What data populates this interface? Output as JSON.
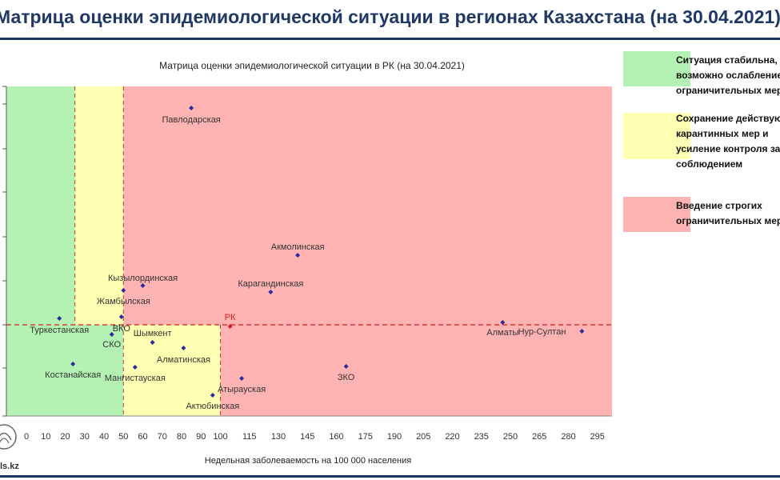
{
  "page_title": "Матрица оценки эпидемиологической ситуации в регионах Казахстана (на 30.04.2021)",
  "logo_text": "ls.kz",
  "colors": {
    "green": "#b3f2b3",
    "yellow": "#ffffb3",
    "red": "#ffb3b3",
    "point": "#2b2b9e",
    "rk_point": "#d42020",
    "title": "#1f3864"
  },
  "legend": [
    {
      "color": "#b3f2b3",
      "text": "Ситуация стабильна,\nвозможно ослабление\nограничительных мер"
    },
    {
      "color": "#ffffb3",
      "text": "Сохранение действующих\nкарантинных мер и\nусиление контроля за их\nсоблюдением"
    },
    {
      "color": "#ffb3b3",
      "text": "Введение строгих\nограничительных мер"
    }
  ],
  "chart_data": {
    "type": "scatter",
    "title": "Матрица оценки эпидемиологической ситуации в РК (на 30.04.2021)",
    "xlabel": "Недельная заболеваемость на 100 000 населения",
    "ylabel": "",
    "xlim": [
      -5,
      300
    ],
    "x_ticks": [
      0,
      10,
      20,
      30,
      40,
      50,
      60,
      70,
      80,
      90,
      100,
      115,
      130,
      145,
      160,
      175,
      190,
      205,
      220,
      235,
      250,
      265,
      280,
      295
    ],
    "x_axis_note": "шаг 10 до 100, затем шаг 15",
    "grid": false,
    "legend_position": "right",
    "zones": [
      {
        "name": "Ситуация стабильна",
        "color": "green",
        "x_max": 25,
        "lower_x_max": 50
      },
      {
        "name": "Сохранение действующих карантинных мер",
        "color": "yellow",
        "x_range": [
          25,
          50
        ],
        "lower_x_range": [
          50,
          100
        ]
      },
      {
        "name": "Введение строгих ограничительных мер",
        "color": "red",
        "x_min": 50,
        "lower_x_min": 100
      }
    ],
    "reference_lines": {
      "horizontal_level": "РК",
      "vertical": [
        25,
        50,
        100
      ]
    },
    "series": [
      {
        "points": [
          {
            "label": "Павлодарская",
            "x": 85
          },
          {
            "label": "Акмолинская",
            "x": 140
          },
          {
            "label": "Карагандинская",
            "x": 126
          },
          {
            "label": "Кызылординская",
            "x": 60
          },
          {
            "label": "Жамбылская",
            "x": 50
          },
          {
            "label": "Туркестанская",
            "x": 17
          },
          {
            "label": "ВКО",
            "x": 49
          },
          {
            "label": "СКО",
            "x": 44
          },
          {
            "label": "Шымкент",
            "x": 65
          },
          {
            "label": "Алматинская",
            "x": 81
          },
          {
            "label": "Костанайская",
            "x": 24
          },
          {
            "label": "Мангистауская",
            "x": 56
          },
          {
            "label": "Актюбинская",
            "x": 96
          },
          {
            "label": "Атырауская",
            "x": 111
          },
          {
            "label": "ЗКО",
            "x": 165
          },
          {
            "label": "Алматы",
            "x": 246
          },
          {
            "label": "Нур-Султан",
            "x": 287
          },
          {
            "label": "РК",
            "x": 105
          }
        ]
      }
    ]
  }
}
